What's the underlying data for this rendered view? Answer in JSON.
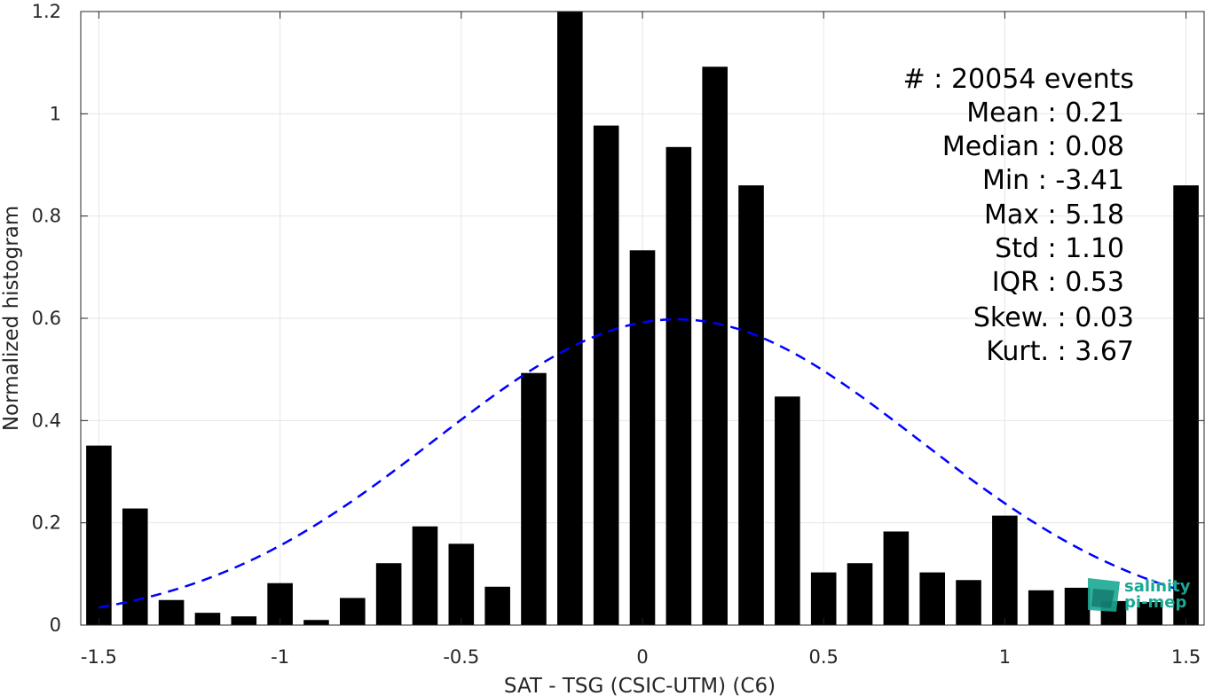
{
  "chart_data": {
    "type": "bar",
    "xlabel": "SAT - TSG (CSIC-UTM) (C6)",
    "ylabel": "Normalized histogram",
    "xlim": [
      -1.55,
      1.55
    ],
    "ylim": [
      0,
      1.2
    ],
    "grid": true,
    "x_ticks": [
      "-1.5",
      "-1",
      "-0.5",
      "0",
      "0.5",
      "1",
      "1.5"
    ],
    "y_ticks": [
      "0",
      "0.2",
      "0.4",
      "0.6",
      "0.8",
      "1",
      "1.2"
    ],
    "x": [
      -1.5,
      -1.4,
      -1.3,
      -1.2,
      -1.1,
      -1.0,
      -0.9,
      -0.8,
      -0.7,
      -0.6,
      -0.5,
      -0.4,
      -0.3,
      -0.2,
      -0.1,
      0.0,
      0.1,
      0.2,
      0.3,
      0.4,
      0.5,
      0.6,
      0.7,
      0.8,
      0.9,
      1.0,
      1.1,
      1.2,
      1.3,
      1.4,
      1.5
    ],
    "values": [
      0.351,
      0.228,
      0.049,
      0.024,
      0.017,
      0.082,
      0.01,
      0.053,
      0.121,
      0.193,
      0.159,
      0.075,
      0.493,
      1.2,
      0.977,
      0.733,
      0.935,
      1.092,
      0.86,
      0.447,
      0.103,
      0.121,
      0.183,
      0.103,
      0.088,
      0.214,
      0.068,
      0.073,
      0.047,
      0.045,
      0.86
    ],
    "bar_color": "#000000",
    "fit_curve": {
      "style": "dashed",
      "color": "#0000ff",
      "mean": 0.095,
      "std": 0.667,
      "peak": 0.598,
      "x_range": [
        -1.5,
        1.47
      ]
    },
    "stats": [
      {
        "label": "#  ",
        "value": "20054 events"
      },
      {
        "label": "Mean",
        "value": "0.21"
      },
      {
        "label": "Median",
        "value": "0.08"
      },
      {
        "label": "Min",
        "value": "-3.41"
      },
      {
        "label": "Max",
        "value": "5.18"
      },
      {
        "label": "Std",
        "value": "1.10"
      },
      {
        "label": "IQR",
        "value": "0.53"
      },
      {
        "label": "Skew.",
        "value": "0.03"
      },
      {
        "label": "Kurt.",
        "value": "3.67"
      }
    ]
  },
  "stats_lines": [
    "#  : 20054 events",
    "Mean : 0.21",
    "Median : 0.08",
    "Min : -3.41",
    "Max : 5.18",
    "Std : 1.10",
    "IQR : 0.53",
    "Skew. : 0.03",
    "Kurt. : 3.67"
  ],
  "logo": {
    "line1": "salinity",
    "line2": "pi-mep",
    "color": "#1aa892"
  }
}
